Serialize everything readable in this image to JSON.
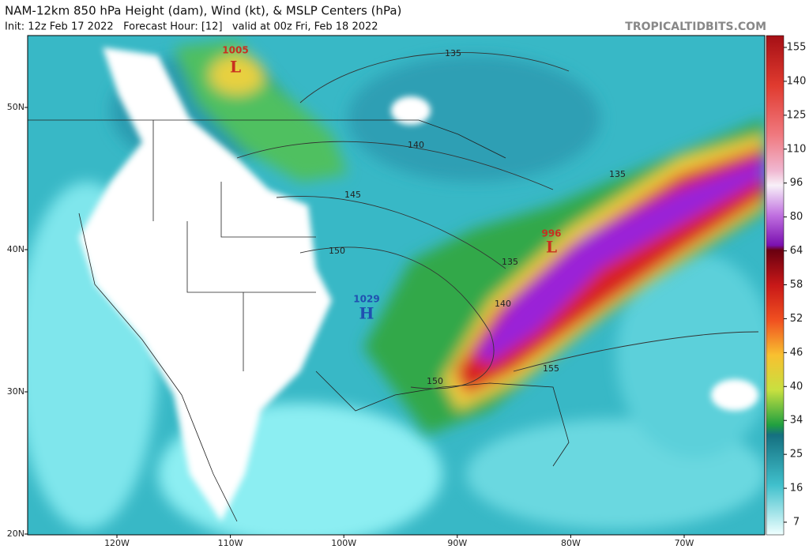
{
  "header": {
    "title": "NAM-12km 850 hPa Height (dam), Wind (kt), & MSLP Centers (hPa)",
    "subtitle": "Init: 12z Feb 17 2022   Forecast Hour: [12]   valid at 00z Fri, Feb 18 2022",
    "site": "TROPICALTIDBITS.COM"
  },
  "map": {
    "lat_labels": [
      "50N",
      "40N",
      "30N",
      "20N"
    ],
    "lon_labels": [
      "120W",
      "110W",
      "100W",
      "90W",
      "80W",
      "70W"
    ],
    "contour_labels": [
      135,
      140,
      145,
      150,
      135,
      135,
      140,
      150,
      155
    ],
    "pressure_centers": [
      {
        "value": 1005,
        "symbol": "L"
      },
      {
        "value": 996,
        "symbol": "L"
      },
      {
        "value": 1029,
        "symbol": "H"
      }
    ]
  },
  "colorbar": {
    "ticks": [
      155,
      140,
      125,
      110,
      96,
      80,
      64,
      58,
      52,
      46,
      40,
      34,
      25,
      16,
      7
    ]
  }
}
